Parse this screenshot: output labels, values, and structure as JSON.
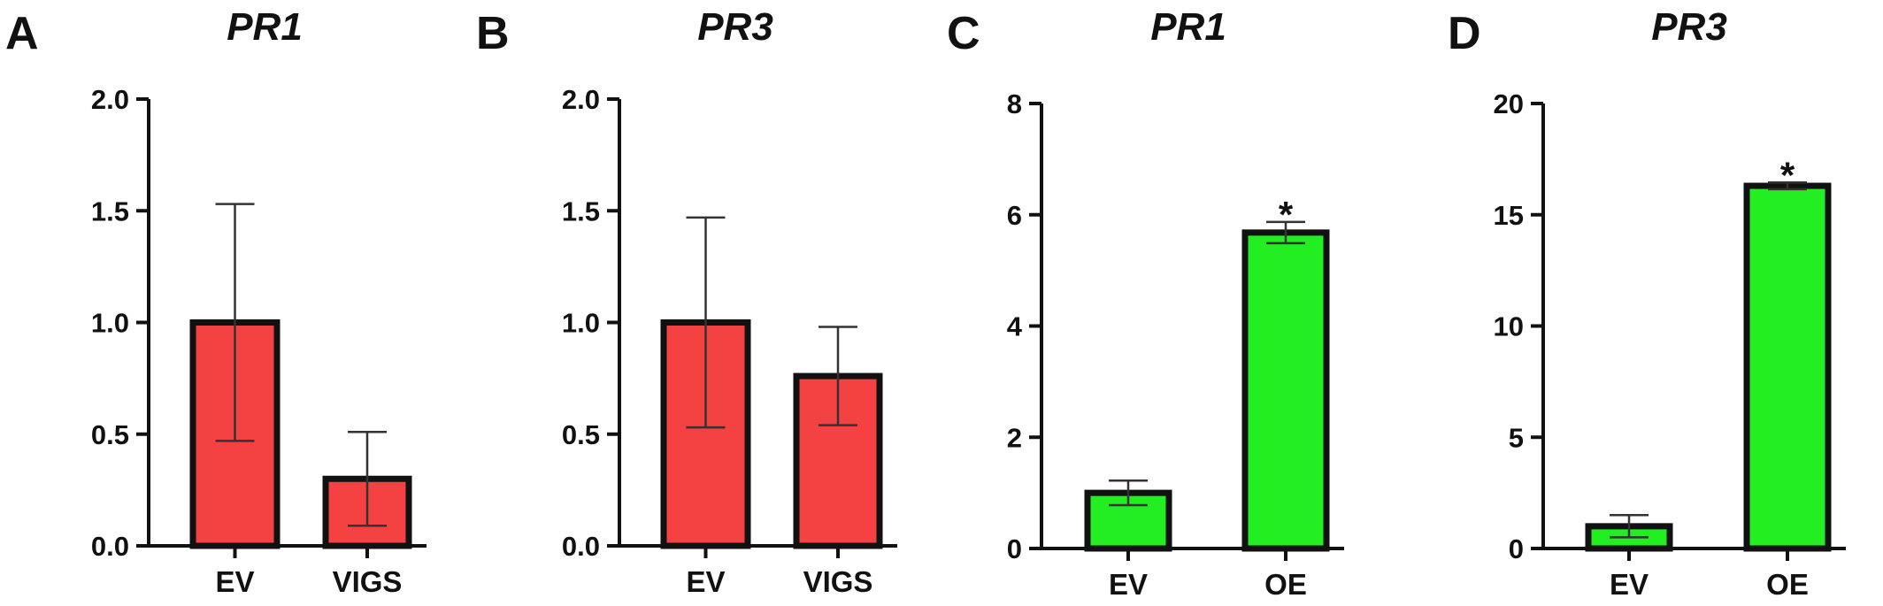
{
  "chart_data": [
    {
      "panel": "A",
      "type": "bar",
      "title": "PR1",
      "categories": [
        "EV",
        "VIGS"
      ],
      "values": [
        1.0,
        0.3
      ],
      "error": [
        0.53,
        0.21
      ],
      "annotations": [
        "",
        ""
      ],
      "ylim": [
        0,
        2.0
      ],
      "yticks": [
        "0.0",
        "0.5",
        "1.0",
        "1.5",
        "2.0"
      ],
      "bar_color": "#f44242",
      "xlabel": "",
      "ylabel": "",
      "grid": false
    },
    {
      "panel": "B",
      "type": "bar",
      "title": "PR3",
      "categories": [
        "EV",
        "VIGS"
      ],
      "values": [
        1.0,
        0.76
      ],
      "error": [
        0.47,
        0.22
      ],
      "annotations": [
        "",
        ""
      ],
      "ylim": [
        0,
        2.0
      ],
      "yticks": [
        "0.0",
        "0.5",
        "1.0",
        "1.5",
        "2.0"
      ],
      "bar_color": "#f44242",
      "xlabel": "",
      "ylabel": "",
      "grid": false
    },
    {
      "panel": "C",
      "type": "bar",
      "title": "PR1",
      "categories": [
        "EV",
        "OE"
      ],
      "values": [
        1.0,
        5.68
      ],
      "error": [
        0.22,
        0.19
      ],
      "annotations": [
        "",
        "*"
      ],
      "ylim": [
        0,
        8
      ],
      "yticks": [
        "0",
        "2",
        "4",
        "6",
        "8"
      ],
      "bar_color": "#22ee22",
      "xlabel": "",
      "ylabel": "",
      "grid": false
    },
    {
      "panel": "D",
      "type": "bar",
      "title": "PR3",
      "categories": [
        "EV",
        "OE"
      ],
      "values": [
        1.0,
        16.3
      ],
      "error": [
        0.5,
        0.15
      ],
      "annotations": [
        "",
        "*"
      ],
      "ylim": [
        0,
        20
      ],
      "yticks": [
        "0",
        "5",
        "10",
        "15",
        "20"
      ],
      "bar_color": "#22ee22",
      "xlabel": "",
      "ylabel": "",
      "grid": false
    }
  ]
}
